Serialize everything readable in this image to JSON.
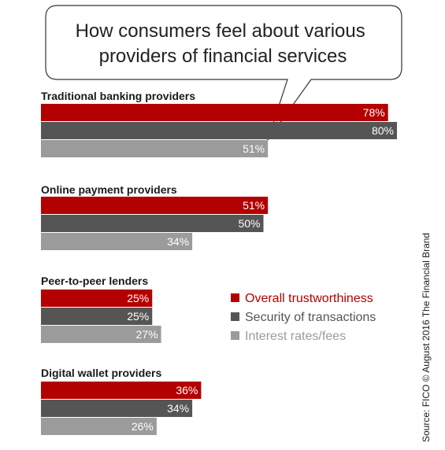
{
  "chart_data": {
    "type": "bar",
    "orientation": "horizontal",
    "title": "How consumers feel about various providers of financial services",
    "title_lines": [
      "How consumers feel about various",
      "providers of financial services"
    ],
    "categories": [
      "Traditional banking providers",
      "Online payment providers",
      "Peer-to-peer lenders",
      "Digital wallet providers"
    ],
    "series": [
      {
        "name": "Overall trustworthiness",
        "values": [
          78,
          51,
          25,
          36
        ],
        "labels": [
          "78%",
          "51%",
          "25%",
          "36%"
        ]
      },
      {
        "name": "Security of transactions",
        "values": [
          80,
          50,
          25,
          34
        ],
        "labels": [
          "80%",
          "50%",
          "25%",
          "34%"
        ]
      },
      {
        "name": "Interest rates/fees",
        "values": [
          51,
          34,
          27,
          26
        ],
        "labels": [
          "51%",
          "34%",
          "27%",
          "26%"
        ]
      }
    ],
    "xlim": [
      0,
      100
    ],
    "grid": false,
    "legend_position": "right",
    "colors": [
      "#b30000",
      "#555555",
      "#9b9b9b"
    ],
    "source": "Source: FICO © August 2016 The Financial Brand"
  }
}
